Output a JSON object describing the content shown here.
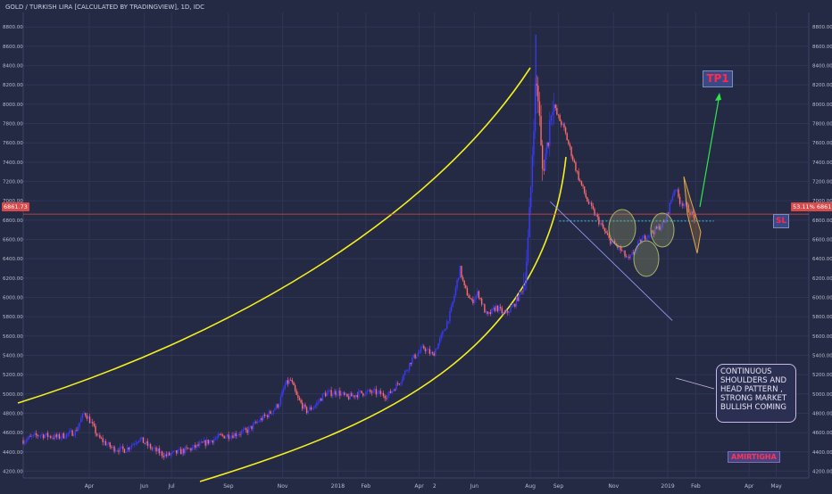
{
  "chart_data": {
    "type": "candlestick",
    "title": "GOLD / TURKISH LIRA [CALCULATED BY TRADINGVIEW], 1D, IDC",
    "y_ticks": [
      4200,
      4400,
      4600,
      4800,
      5000,
      5200,
      5400,
      5600,
      5800,
      6000,
      6200,
      6400,
      6600,
      6800,
      7000,
      7200,
      7400,
      7600,
      7800,
      8000,
      8200,
      8400,
      8600,
      8800
    ],
    "y_tick_labels": [
      "4200.00",
      "4400.00",
      "4600.00",
      "4800.00",
      "5000.00",
      "5200.00",
      "5400.00",
      "5600.00",
      "5800.00",
      "6000.00",
      "6200.00",
      "6400.00",
      "6600.00",
      "6800.00",
      "7000.00",
      "7200.00",
      "7400.00",
      "7600.00",
      "7800.00",
      "8000.00",
      "8200.00",
      "8400.00",
      "8600.00",
      "8800.00"
    ],
    "ylim": [
      4130,
      8950
    ],
    "x_labels": [
      "Apr",
      "Jun",
      "Jul",
      "Sep",
      "Nov",
      "2018",
      "Feb",
      "Apr",
      "2",
      "Jun",
      "Aug",
      "Sep",
      "Nov",
      "2019",
      "Feb",
      "Apr",
      "May"
    ],
    "x_label_days": [
      15,
      76,
      106,
      169,
      229,
      290,
      321,
      380,
      397,
      441,
      503,
      534,
      595,
      655,
      686,
      745,
      775
    ],
    "x_range_days": [
      -58,
      811
    ],
    "last_price": 6861.73,
    "last_price_label": "6861.73",
    "right_price_label": "53.11% 6861.73",
    "trend_line": [
      6990,
      5760
    ],
    "close_path": [
      [
        -58,
        4520
      ],
      [
        -40,
        4580
      ],
      [
        -20,
        4550
      ],
      [
        0,
        4610
      ],
      [
        5,
        4720
      ],
      [
        10,
        4810
      ],
      [
        16,
        4720
      ],
      [
        25,
        4550
      ],
      [
        40,
        4440
      ],
      [
        55,
        4420
      ],
      [
        70,
        4540
      ],
      [
        85,
        4430
      ],
      [
        100,
        4360
      ],
      [
        115,
        4400
      ],
      [
        130,
        4440
      ],
      [
        145,
        4500
      ],
      [
        160,
        4560
      ],
      [
        175,
        4580
      ],
      [
        190,
        4620
      ],
      [
        205,
        4740
      ],
      [
        215,
        4800
      ],
      [
        225,
        4900
      ],
      [
        232,
        5100
      ],
      [
        238,
        5140
      ],
      [
        245,
        4960
      ],
      [
        255,
        4820
      ],
      [
        265,
        4880
      ],
      [
        275,
        5000
      ],
      [
        290,
        5020
      ],
      [
        300,
        4960
      ],
      [
        315,
        5010
      ],
      [
        330,
        5020
      ],
      [
        345,
        4980
      ],
      [
        360,
        5150
      ],
      [
        372,
        5360
      ],
      [
        385,
        5480
      ],
      [
        395,
        5400
      ],
      [
        405,
        5600
      ],
      [
        415,
        5850
      ],
      [
        425,
        6300
      ],
      [
        430,
        6100
      ],
      [
        438,
        5950
      ],
      [
        445,
        6050
      ],
      [
        455,
        5800
      ],
      [
        465,
        5900
      ],
      [
        475,
        5820
      ],
      [
        485,
        5920
      ],
      [
        495,
        6100
      ],
      [
        500,
        6500
      ],
      [
        503,
        7000
      ],
      [
        506,
        7700
      ],
      [
        509,
        8250
      ],
      [
        512,
        8050
      ],
      [
        516,
        7300
      ],
      [
        522,
        7600
      ],
      [
        527,
        8050
      ],
      [
        532,
        7900
      ],
      [
        540,
        7750
      ],
      [
        548,
        7500
      ],
      [
        556,
        7250
      ],
      [
        566,
        7000
      ],
      [
        578,
        6800
      ],
      [
        590,
        6600
      ],
      [
        602,
        6500
      ],
      [
        612,
        6380
      ],
      [
        622,
        6550
      ],
      [
        632,
        6650
      ],
      [
        642,
        6700
      ],
      [
        652,
        6780
      ],
      [
        657,
        6950
      ],
      [
        663,
        7150
      ],
      [
        668,
        7000
      ],
      [
        674,
        6960
      ],
      [
        680,
        6880
      ],
      [
        686,
        6800
      ]
    ]
  },
  "annotations": {
    "note_lines": [
      "CONTINUOUS",
      "SHOULDERS AND",
      "HEAD PATTERN ,",
      "STRONG MARKET",
      "BULLISH  COMING"
    ],
    "tp_label": "TP1",
    "sl_label": "SL",
    "watermark": "AMIRTIGHA"
  },
  "colors": {
    "background": "#252a44",
    "up_candle": "#3a3aff",
    "down_candle": "#ff6a6a",
    "curve": "#f4f01e",
    "price_line": "#d94a4a",
    "support_line": "#39c6d8",
    "target_arrow": "#2ee64c",
    "ellipse_fill": "#a8b06a"
  }
}
